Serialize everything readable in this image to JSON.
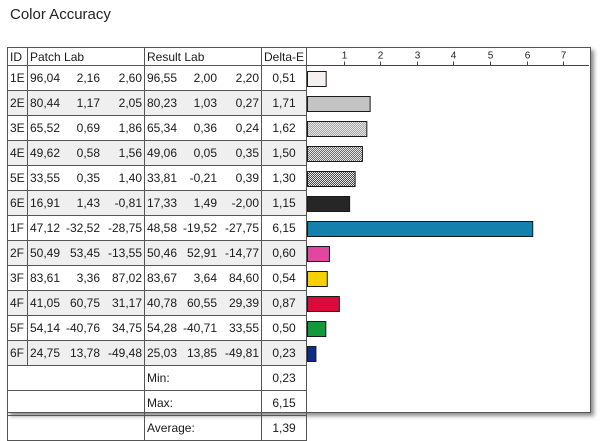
{
  "title": "Color Accuracy",
  "headers": {
    "id": "ID",
    "patch": "Patch Lab",
    "result": "Result Lab",
    "delta": "Delta-E"
  },
  "rows": [
    {
      "id": "1E",
      "patch": [
        "96,04",
        "2,16",
        "2,60"
      ],
      "result": [
        "96,55",
        "2,00",
        "2,20"
      ],
      "delta": "0,51"
    },
    {
      "id": "2E",
      "patch": [
        "80,44",
        "1,17",
        "2,05"
      ],
      "result": [
        "80,23",
        "1,03",
        "0,27"
      ],
      "delta": "1,71"
    },
    {
      "id": "3E",
      "patch": [
        "65,52",
        "0,69",
        "1,86"
      ],
      "result": [
        "65,34",
        "0,36",
        "0,24"
      ],
      "delta": "1,62"
    },
    {
      "id": "4E",
      "patch": [
        "49,62",
        "0,58",
        "1,56"
      ],
      "result": [
        "49,06",
        "0,05",
        "0,35"
      ],
      "delta": "1,50"
    },
    {
      "id": "5E",
      "patch": [
        "33,55",
        "0,35",
        "1,40"
      ],
      "result": [
        "33,81",
        "-0,21",
        "0,39"
      ],
      "delta": "1,30"
    },
    {
      "id": "6E",
      "patch": [
        "16,91",
        "1,43",
        "-0,81"
      ],
      "result": [
        "17,33",
        "1,49",
        "-2,00"
      ],
      "delta": "1,15"
    },
    {
      "id": "1F",
      "patch": [
        "47,12",
        "-32,52",
        "-28,75"
      ],
      "result": [
        "48,58",
        "-19,52",
        "-27,75"
      ],
      "delta": "6,15"
    },
    {
      "id": "2F",
      "patch": [
        "50,49",
        "53,45",
        "-13,55"
      ],
      "result": [
        "50,46",
        "52,91",
        "-14,77"
      ],
      "delta": "0,60"
    },
    {
      "id": "3F",
      "patch": [
        "83,61",
        "3,36",
        "87,02"
      ],
      "result": [
        "83,67",
        "3,64",
        "84,60"
      ],
      "delta": "0,54"
    },
    {
      "id": "4F",
      "patch": [
        "41,05",
        "60,75",
        "31,17"
      ],
      "result": [
        "40,78",
        "60,55",
        "29,39"
      ],
      "delta": "0,87"
    },
    {
      "id": "5F",
      "patch": [
        "54,14",
        "-40,76",
        "34,75"
      ],
      "result": [
        "54,28",
        "-40,71",
        "33,55"
      ],
      "delta": "0,50"
    },
    {
      "id": "6F",
      "patch": [
        "24,75",
        "13,78",
        "-49,48"
      ],
      "result": [
        "25,03",
        "13,85",
        "-49,81"
      ],
      "delta": "0,23"
    }
  ],
  "summary": [
    {
      "label": "Min:",
      "value": "0,23"
    },
    {
      "label": "Max:",
      "value": "6,15"
    },
    {
      "label": "Average:",
      "value": "1,39"
    }
  ],
  "chart_data": {
    "type": "bar",
    "orientation": "horizontal",
    "categories": [
      "1E",
      "2E",
      "3E",
      "4E",
      "5E",
      "6E",
      "1F",
      "2F",
      "3F",
      "4F",
      "5F",
      "6F"
    ],
    "values": [
      0.51,
      1.71,
      1.62,
      1.5,
      1.3,
      1.15,
      6.15,
      0.6,
      0.54,
      0.87,
      0.5,
      0.23
    ],
    "bar_colors": [
      "#f6f1f1",
      "#c4c4c4",
      "#a4a4a4",
      "#6c6c6c",
      "#484848",
      "#262626",
      "#1380ae",
      "#e2479f",
      "#f6d100",
      "#db0a3a",
      "#12993a",
      "#0c2e8a"
    ],
    "bar_patterns": [
      "solid",
      "solid",
      "dotted",
      "dotted",
      "dotted",
      "solid",
      "solid",
      "solid",
      "solid",
      "solid",
      "solid",
      "solid"
    ],
    "xticks": [
      1,
      2,
      3,
      4,
      5,
      6,
      7
    ],
    "xlim": [
      0,
      7.7
    ],
    "grid": false
  }
}
